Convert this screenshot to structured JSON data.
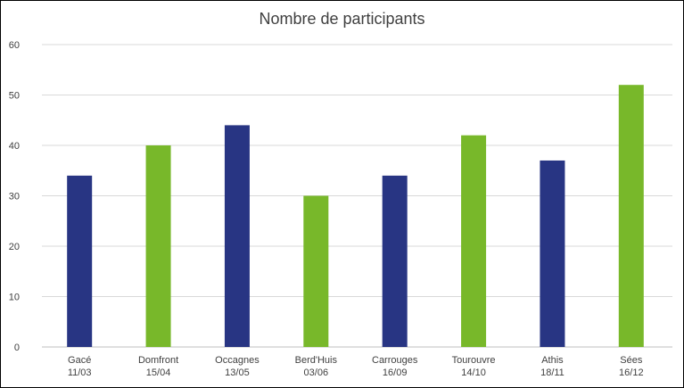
{
  "chart_data": {
    "type": "bar",
    "title": "Nombre de participants",
    "categories": [
      [
        "Gacé",
        "11/03"
      ],
      [
        "Domfront",
        "15/04"
      ],
      [
        "Occagnes",
        "13/05"
      ],
      [
        "Berd'Huis",
        "03/06"
      ],
      [
        "Carrouges",
        "16/09"
      ],
      [
        "Tourouvre",
        "14/10"
      ],
      [
        "Athis",
        "18/11"
      ],
      [
        "Sées",
        "16/12"
      ]
    ],
    "values": [
      34,
      40,
      44,
      30,
      34,
      42,
      37,
      52
    ],
    "bar_colors": [
      "#283583",
      "#78b82a",
      "#283583",
      "#78b82a",
      "#283583",
      "#78b82a",
      "#283583",
      "#78b82a"
    ],
    "ylim": [
      0,
      60
    ],
    "yticks": [
      0,
      10,
      20,
      30,
      40,
      50,
      60
    ],
    "grid": true,
    "xlabel": "",
    "ylabel": ""
  }
}
